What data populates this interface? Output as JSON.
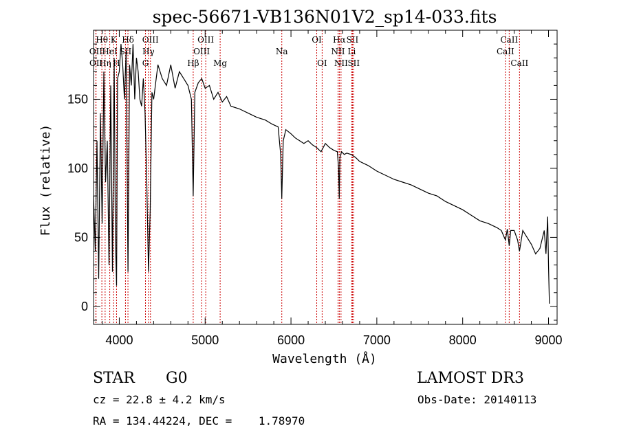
{
  "chart_data": {
    "type": "line",
    "title": "spec-56671-VB136N01V2_sp14-033.fits",
    "xlabel": "Wavelength (Å)",
    "ylabel": "Flux (relative)",
    "xlim": [
      3700,
      9100
    ],
    "ylim": [
      -13,
      200
    ],
    "x_ticks": [
      4000,
      5000,
      6000,
      7000,
      8000,
      9000
    ],
    "y_ticks": [
      0,
      50,
      100,
      150
    ],
    "grid": false,
    "series": [
      {
        "name": "spectrum",
        "x": [
          3700,
          3720,
          3740,
          3760,
          3780,
          3800,
          3820,
          3840,
          3860,
          3880,
          3900,
          3920,
          3940,
          3955,
          3968,
          3980,
          4000,
          4020,
          4040,
          4060,
          4080,
          4101,
          4120,
          4140,
          4160,
          4180,
          4200,
          4220,
          4240,
          4260,
          4280,
          4300,
          4320,
          4340,
          4360,
          4380,
          4400,
          4450,
          4500,
          4550,
          4600,
          4650,
          4700,
          4750,
          4800,
          4840,
          4861,
          4880,
          4920,
          4960,
          5000,
          5050,
          5100,
          5150,
          5200,
          5250,
          5300,
          5400,
          5500,
          5600,
          5700,
          5780,
          5850,
          5880,
          5893,
          5910,
          5940,
          6000,
          6050,
          6100,
          6150,
          6200,
          6250,
          6300,
          6350,
          6400,
          6450,
          6500,
          6540,
          6555,
          6563,
          6570,
          6590,
          6620,
          6650,
          6700,
          6750,
          6800,
          6900,
          7000,
          7100,
          7200,
          7300,
          7400,
          7500,
          7600,
          7700,
          7800,
          7900,
          8000,
          8100,
          8200,
          8300,
          8400,
          8450,
          8498,
          8520,
          8542,
          8560,
          8600,
          8640,
          8662,
          8700,
          8750,
          8800,
          8850,
          8900,
          8950,
          8970,
          8990,
          9000,
          9010
        ],
        "values": [
          80,
          40,
          120,
          20,
          140,
          60,
          170,
          90,
          120,
          30,
          160,
          25,
          180,
          50,
          15,
          165,
          170,
          190,
          175,
          150,
          185,
          25,
          175,
          160,
          190,
          150,
          180,
          170,
          150,
          145,
          165,
          140,
          90,
          25,
          70,
          155,
          150,
          175,
          165,
          160,
          175,
          158,
          170,
          165,
          160,
          150,
          80,
          155,
          162,
          165,
          158,
          160,
          150,
          155,
          148,
          152,
          145,
          143,
          140,
          137,
          135,
          132,
          130,
          110,
          78,
          120,
          128,
          125,
          122,
          120,
          118,
          120,
          117,
          115,
          112,
          118,
          115,
          113,
          112,
          100,
          78,
          108,
          112,
          110,
          111,
          110,
          108,
          105,
          102,
          98,
          95,
          92,
          90,
          88,
          85,
          82,
          80,
          76,
          73,
          70,
          66,
          62,
          60,
          57,
          55,
          48,
          56,
          44,
          55,
          55,
          48,
          40,
          55,
          50,
          45,
          38,
          42,
          55,
          38,
          65,
          30,
          2
        ]
      }
    ],
    "spectral_lines": [
      {
        "label": "Hθ",
        "wavelength": 3797,
        "row": 1
      },
      {
        "label": "K",
        "wavelength": 3934,
        "row": 1
      },
      {
        "label": "Hδ",
        "wavelength": 4101,
        "row": 1
      },
      {
        "label": "OIII",
        "wavelength": 4363,
        "row": 1
      },
      {
        "label": "OIII",
        "wavelength": 5007,
        "row": 1
      },
      {
        "label": "OI",
        "wavelength": 6300,
        "row": 1
      },
      {
        "label": "Hα",
        "wavelength": 6563,
        "row": 1
      },
      {
        "label": "SII",
        "wavelength": 6716,
        "row": 1
      },
      {
        "label": "CaII",
        "wavelength": 8542,
        "row": 1
      },
      {
        "label": "OII",
        "wavelength": 3727,
        "row": 2
      },
      {
        "label": "HeI",
        "wavelength": 3889,
        "row": 2
      },
      {
        "label": "SII",
        "wavelength": 4072,
        "row": 2
      },
      {
        "label": "Hγ",
        "wavelength": 4340,
        "row": 2
      },
      {
        "label": "OIII",
        "wavelength": 4959,
        "row": 2
      },
      {
        "label": "Na",
        "wavelength": 5893,
        "row": 2
      },
      {
        "label": "NII",
        "wavelength": 6548,
        "row": 2
      },
      {
        "label": "Li",
        "wavelength": 6708,
        "row": 2
      },
      {
        "label": "CaII",
        "wavelength": 8498,
        "row": 2
      },
      {
        "label": "OII",
        "wavelength": 3729,
        "row": 3
      },
      {
        "label": "Hη",
        "wavelength": 3835,
        "row": 3
      },
      {
        "label": "H",
        "wavelength": 3968,
        "row": 3
      },
      {
        "label": "G",
        "wavelength": 4305,
        "row": 3
      },
      {
        "label": "Hβ",
        "wavelength": 4861,
        "row": 3
      },
      {
        "label": "Mg",
        "wavelength": 5175,
        "row": 3
      },
      {
        "label": "OI",
        "wavelength": 6363,
        "row": 3
      },
      {
        "label": "NII",
        "wavelength": 6583,
        "row": 3
      },
      {
        "label": "SII",
        "wavelength": 6731,
        "row": 3
      },
      {
        "label": "CaII",
        "wavelength": 8662,
        "row": 3
      }
    ],
    "line_color": "#cc0000"
  },
  "info": {
    "class_label": "STAR",
    "subclass": "G0",
    "survey": "LAMOST DR3",
    "redshift": "cz = 22.8 ± 4.2 km/s",
    "obs_date": "Obs-Date: 20140113",
    "coords": "RA = 134.44224, DEC =    1.78970"
  }
}
